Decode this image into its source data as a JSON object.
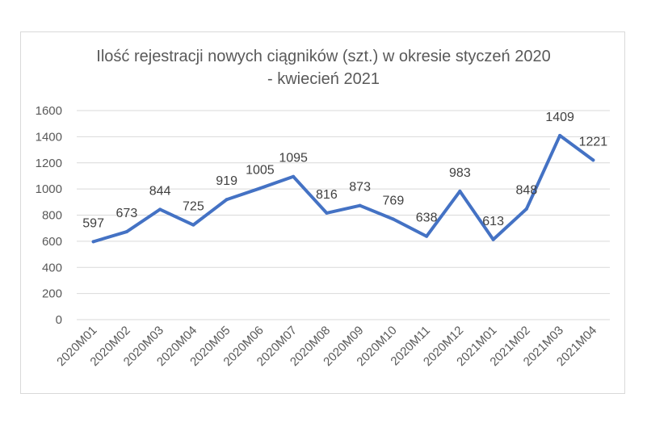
{
  "chart_data": {
    "type": "line",
    "title": "Ilość rejestracji nowych ciągników (szt.) w okresie styczeń 2020 - kwiecień 2021",
    "title_lines": [
      "Ilość rejestracji nowych ciągników (szt.) w okresie styczeń 2020",
      "- kwiecień 2021"
    ],
    "categories": [
      "2020M01",
      "2020M02",
      "2020M03",
      "2020M04",
      "2020M05",
      "2020M06",
      "2020M07",
      "2020M08",
      "2020M09",
      "2020M10",
      "2020M11",
      "2020M12",
      "2021M01",
      "2021M02",
      "2021M03",
      "2021M04"
    ],
    "series": [
      {
        "values": [
          597,
          673,
          844,
          725,
          919,
          1005,
          1095,
          816,
          873,
          769,
          638,
          983,
          613,
          848,
          1409,
          1221
        ]
      }
    ],
    "y_ticks": [
      0,
      200,
      400,
      600,
      800,
      1000,
      1200,
      1400,
      1600
    ],
    "ylim": [
      0,
      1600
    ],
    "xlabel": "",
    "ylabel": "",
    "grid": true,
    "legend": "none",
    "line_color": "#4472c4"
  }
}
